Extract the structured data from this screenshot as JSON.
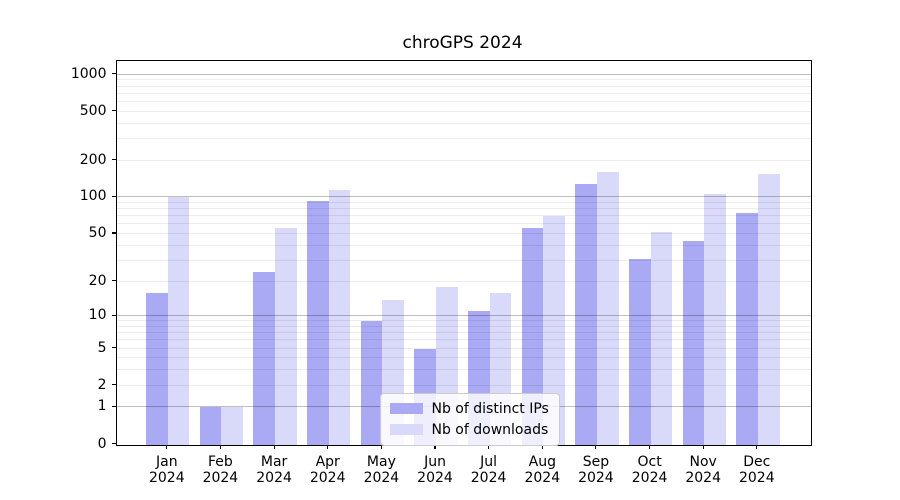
{
  "title": "chroGPS 2024",
  "chart_data": {
    "type": "bar",
    "title": "chroGPS 2024",
    "categories": [
      "Jan",
      "Feb",
      "Mar",
      "Apr",
      "May",
      "Jun",
      "Jul",
      "Aug",
      "Sep",
      "Oct",
      "Nov",
      "Dec"
    ],
    "x_year": "2024",
    "series": [
      {
        "name": "Nb of distinct IPs",
        "color": "#a9a9f4",
        "values": [
          16,
          1,
          24,
          94,
          9,
          5,
          11,
          56,
          129,
          31,
          44,
          75
        ]
      },
      {
        "name": "Nb of downloads",
        "color": "#d9d9f9",
        "values": [
          100,
          1,
          56,
          114,
          14,
          18,
          16,
          70,
          162,
          52,
          107,
          156
        ]
      }
    ],
    "y_scale": "log1p",
    "y_ticks": [
      0,
      1,
      2,
      5,
      10,
      20,
      50,
      100,
      200,
      500,
      1000
    ],
    "ylim": [
      0,
      1300
    ],
    "grid": true,
    "grid_major_at": [
      1,
      10,
      100,
      1000
    ],
    "legend_position": "inside-bottom-center"
  }
}
